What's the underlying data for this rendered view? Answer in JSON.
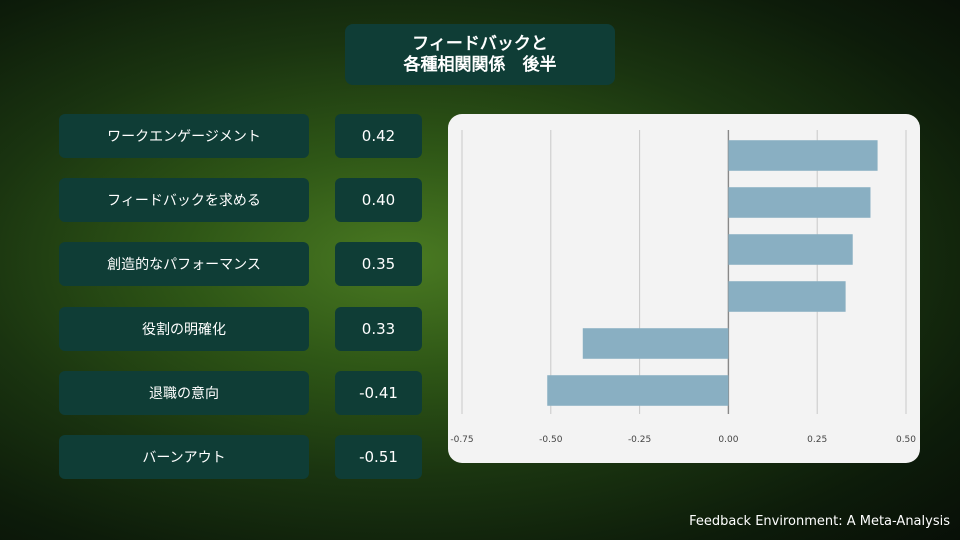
{
  "title": {
    "line1": "フィードバックと",
    "line2": "各種相関関係　後半"
  },
  "rows": [
    {
      "label": "ワークエンゲージメント",
      "value_text": "0.42"
    },
    {
      "label": "フィードバックを求める",
      "value_text": "0.40"
    },
    {
      "label": "創造的なパフォーマンス",
      "value_text": "0.35"
    },
    {
      "label": "役割の明確化",
      "value_text": "0.33"
    },
    {
      "label": "退職の意向",
      "value_text": "-0.41"
    },
    {
      "label": "バーンアウト",
      "value_text": "-0.51"
    }
  ],
  "chart_data": {
    "type": "bar",
    "orientation": "horizontal",
    "categories": [
      "ワークエンゲージメント",
      "フィードバックを求める",
      "創造的なパフォーマンス",
      "役割の明確化",
      "退職の意向",
      "バーンアウト"
    ],
    "values": [
      0.42,
      0.4,
      0.35,
      0.33,
      -0.41,
      -0.51
    ],
    "xlim": [
      -0.75,
      0.5
    ],
    "xticks": [
      "-0.75",
      "-0.50",
      "-0.25",
      "0.00",
      "0.25",
      "0.50"
    ],
    "xtick_values": [
      -0.75,
      -0.5,
      -0.25,
      0,
      0.25,
      0.5
    ],
    "grid": true,
    "bar_color": "#89afc2"
  },
  "footer": "Feedback Environment: A Meta-Analysis"
}
